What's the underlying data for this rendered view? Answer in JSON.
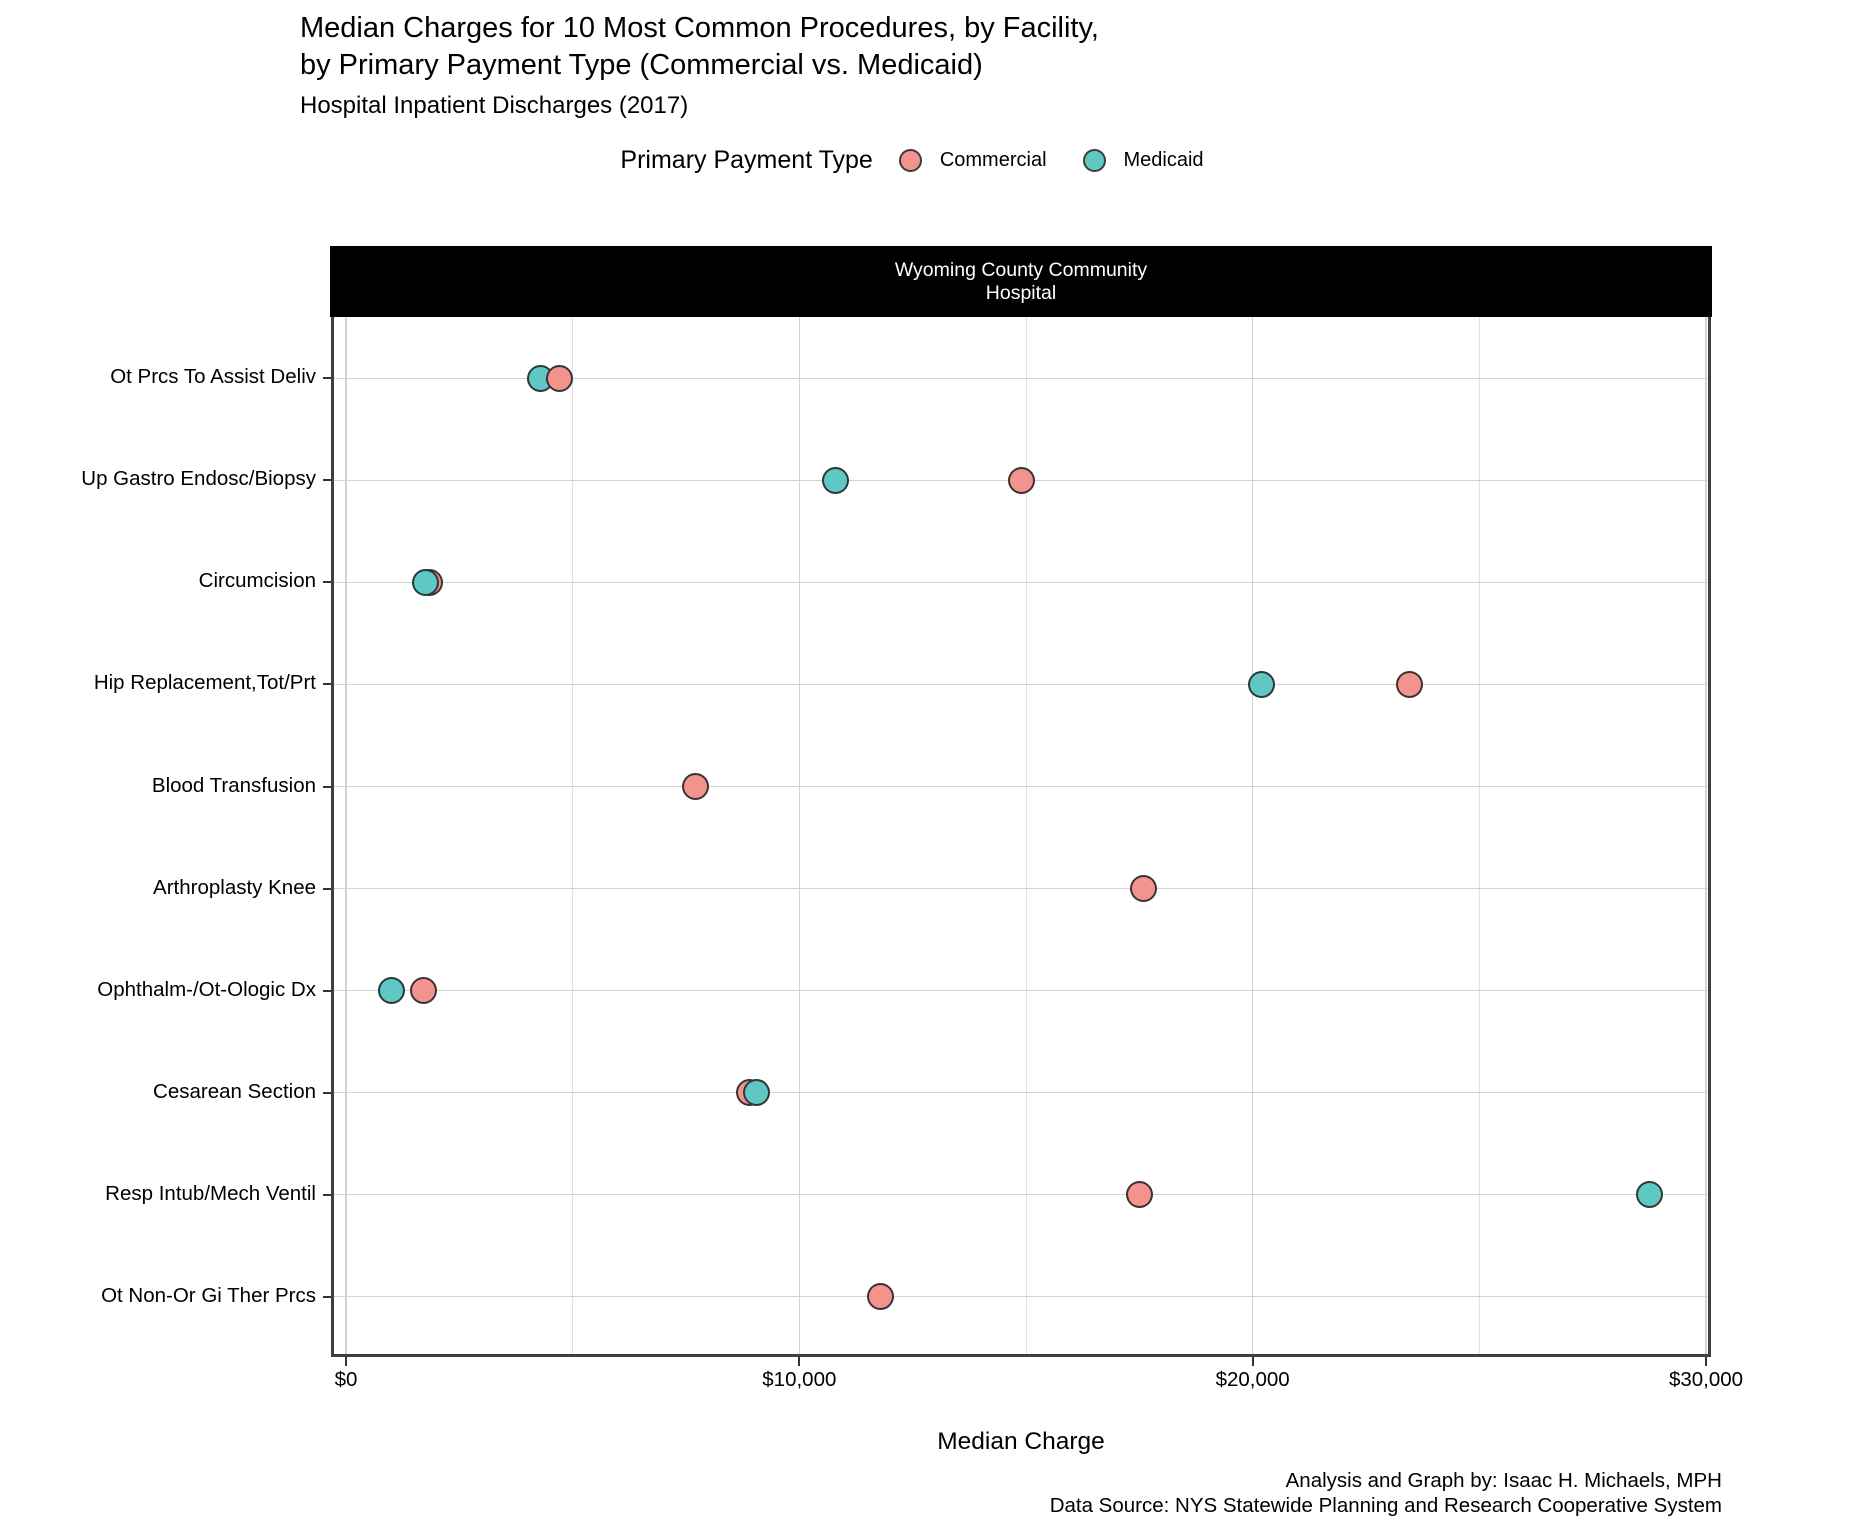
{
  "header": {
    "title_line1": "Median Charges for 10 Most Common Procedures, by Facility,",
    "title_line2": "by Primary Payment Type (Commercial vs. Medicaid)",
    "subtitle": "Hospital Inpatient Discharges (2017)"
  },
  "legend": {
    "title": "Primary Payment Type",
    "items": [
      {
        "label": "Commercial",
        "color": "#F2938E"
      },
      {
        "label": "Medicaid",
        "color": "#5FC7C4"
      }
    ]
  },
  "facet": {
    "label_line1": "Wyoming County Community",
    "label_line2": "Hospital",
    "bg": "#000000",
    "text_color": "#FFFFFF"
  },
  "chart_data": {
    "type": "scatter",
    "title": "Median Charges for 10 Most Common Procedures, by Facility, by Primary Payment Type (Commercial vs. Medicaid)",
    "subtitle": "Hospital Inpatient Discharges (2017)",
    "facet_label": "Wyoming County Community Hospital",
    "xlabel": "Median Charge",
    "ylabel": "",
    "xlim": [
      0,
      30000
    ],
    "grid": "on",
    "legend_position": "top",
    "x_major_ticks": [
      {
        "value": 0,
        "label": "$0"
      },
      {
        "value": 10000,
        "label": "$10,000"
      },
      {
        "value": 20000,
        "label": "$20,000"
      },
      {
        "value": 30000,
        "label": "$30,000"
      }
    ],
    "x_minor_ticks": [
      5000,
      15000,
      25000
    ],
    "categories": [
      "Ot Prcs To Assist Deliv",
      "Up Gastro Endosc/Biopsy",
      "Circumcision",
      "Hip Replacement,Tot/Prt",
      "Blood Transfusion",
      "Arthroplasty Knee",
      "Ophthalm-/Ot-Ologic Dx",
      "Cesarean Section",
      "Resp Intub/Mech Ventil",
      "Ot Non-Or Gi Ther Prcs"
    ],
    "colors": {
      "Commercial": "#F2938E",
      "Medicaid": "#5FC7C4",
      "point_stroke": "#3A3A3A"
    },
    "points": [
      {
        "procedure": "Ot Prcs To Assist Deliv",
        "payer": "Medicaid",
        "value": 4300
      },
      {
        "procedure": "Ot Prcs To Assist Deliv",
        "payer": "Commercial",
        "value": 4700
      },
      {
        "procedure": "Up Gastro Endosc/Biopsy",
        "payer": "Medicaid",
        "value": 10800
      },
      {
        "procedure": "Up Gastro Endosc/Biopsy",
        "payer": "Commercial",
        "value": 14900
      },
      {
        "procedure": "Circumcision",
        "payer": "Commercial",
        "value": 1850
      },
      {
        "procedure": "Circumcision",
        "payer": "Medicaid",
        "value": 1750
      },
      {
        "procedure": "Hip Replacement,Tot/Prt",
        "payer": "Medicaid",
        "value": 20200
      },
      {
        "procedure": "Hip Replacement,Tot/Prt",
        "payer": "Commercial",
        "value": 23450
      },
      {
        "procedure": "Blood Transfusion",
        "payer": "Commercial",
        "value": 7700
      },
      {
        "procedure": "Arthroplasty Knee",
        "payer": "Commercial",
        "value": 17600
      },
      {
        "procedure": "Ophthalm-/Ot-Ologic Dx",
        "payer": "Medicaid",
        "value": 1000
      },
      {
        "procedure": "Ophthalm-/Ot-Ologic Dx",
        "payer": "Commercial",
        "value": 1700
      },
      {
        "procedure": "Cesarean Section",
        "payer": "Commercial",
        "value": 8900
      },
      {
        "procedure": "Cesarean Section",
        "payer": "Medicaid",
        "value": 9050
      },
      {
        "procedure": "Resp Intub/Mech Ventil",
        "payer": "Commercial",
        "value": 17500
      },
      {
        "procedure": "Resp Intub/Mech Ventil",
        "payer": "Medicaid",
        "value": 28750
      },
      {
        "procedure": "Ot Non-Or Gi Ther Prcs",
        "payer": "Commercial",
        "value": 11800
      }
    ]
  },
  "caption": {
    "line1": "Analysis and Graph by: Isaac H. Michaels, MPH",
    "line2": "Data Source: NYS Statewide Planning and Research Cooperative System"
  }
}
